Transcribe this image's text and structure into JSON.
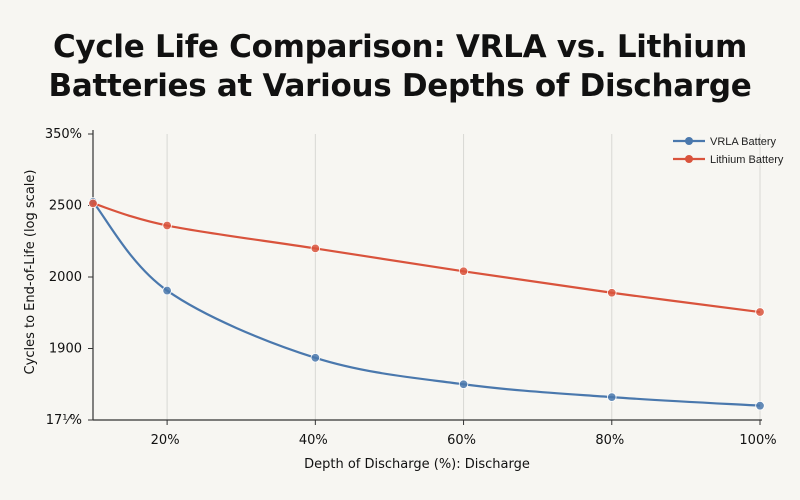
{
  "chart_data": {
    "type": "line",
    "title_lines": [
      "Cycle Life Comparison: VRLA vs. Lithium",
      "Batteries at Various Depths of Discharge"
    ],
    "xlabel": "Depth of Discharge (%): Discharge",
    "ylabel": "Cycles to End-of-Life (log scale)",
    "x": [
      10,
      20,
      40,
      60,
      80,
      100
    ],
    "x_ticks": [
      20,
      40,
      60,
      80,
      100
    ],
    "x_tick_labels": [
      "20%",
      "40%",
      "60%",
      "80%",
      "100%"
    ],
    "xlim": [
      10,
      100
    ],
    "y_tick_labels": [
      "350%",
      "2500",
      "2000",
      "1900",
      "17⅟%"
    ],
    "ylim": [
      0,
      4
    ],
    "y_scale_note": "tick labels are irregular; values expressed on tick index scale (0 = bottom tick, 4 = top tick)",
    "series": [
      {
        "name": "VRLA Battery",
        "color": "#4a78ad",
        "values": [
          3.05,
          1.81,
          0.87,
          0.5,
          0.32,
          0.2
        ]
      },
      {
        "name": "Lithium Battery",
        "color": "#d9533c",
        "values": [
          3.03,
          2.72,
          2.4,
          2.08,
          1.78,
          1.51
        ]
      }
    ],
    "grid": "vertical",
    "legend": "top-right"
  }
}
